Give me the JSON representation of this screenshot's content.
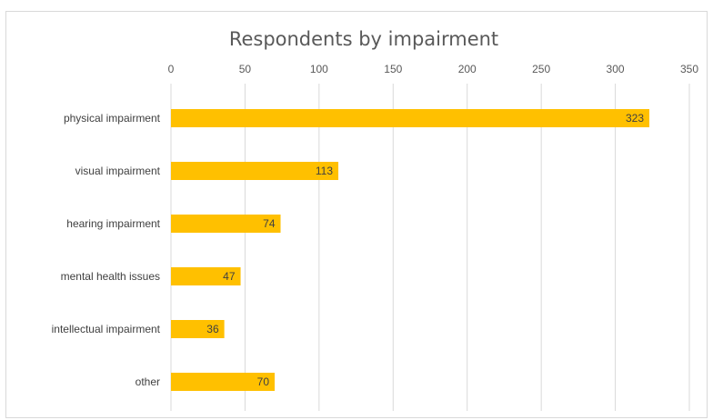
{
  "chart_data": {
    "type": "bar",
    "orientation": "horizontal",
    "title": "Respondents by impairment",
    "categories": [
      "physical impairment",
      "visual impairment",
      "hearing impairment",
      "mental health issues",
      "intellectual impairment",
      "other"
    ],
    "values": [
      323,
      113,
      74,
      47,
      36,
      70
    ],
    "data_labels": [
      "323",
      "113",
      "74",
      "47",
      "36",
      "70"
    ],
    "xlim": [
      0,
      350
    ],
    "ticks": [
      "0",
      "50",
      "100",
      "150",
      "200",
      "250",
      "300",
      "350"
    ],
    "tick_values": [
      0,
      50,
      100,
      150,
      200,
      250,
      300,
      350
    ],
    "axis_position": "top",
    "grid": true,
    "legend": false,
    "bar_color": "#FFC000",
    "grid_color": "#D9D9D9",
    "text_color": "#595959"
  }
}
